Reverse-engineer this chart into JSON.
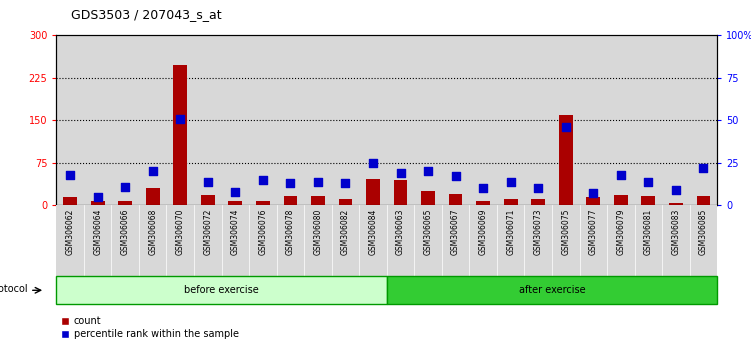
{
  "title": "GDS3503 / 207043_s_at",
  "samples": [
    "GSM306062",
    "GSM306064",
    "GSM306066",
    "GSM306068",
    "GSM306070",
    "GSM306072",
    "GSM306074",
    "GSM306076",
    "GSM306078",
    "GSM306080",
    "GSM306082",
    "GSM306084",
    "GSM306063",
    "GSM306065",
    "GSM306067",
    "GSM306069",
    "GSM306071",
    "GSM306073",
    "GSM306075",
    "GSM306077",
    "GSM306079",
    "GSM306081",
    "GSM306083",
    "GSM306085"
  ],
  "counts": [
    14,
    8,
    7,
    30,
    248,
    18,
    7,
    8,
    16,
    17,
    12,
    47,
    45,
    25,
    20,
    8,
    12,
    12,
    160,
    14,
    18,
    17,
    4,
    17
  ],
  "percentile_ranks": [
    18,
    5,
    11,
    20,
    51,
    14,
    8,
    15,
    13,
    14,
    13,
    25,
    19,
    20,
    17,
    10,
    14,
    10,
    46,
    7,
    18,
    14,
    9,
    22
  ],
  "groups": [
    {
      "label": "before exercise",
      "start": 0,
      "end": 12,
      "color": "#ccffcc",
      "edge_color": "#009900"
    },
    {
      "label": "after exercise",
      "start": 12,
      "end": 24,
      "color": "#33cc33",
      "edge_color": "#009900"
    }
  ],
  "bar_color": "#aa0000",
  "dot_color": "#0000cc",
  "ylim_left": [
    0,
    300
  ],
  "ylim_right": [
    0,
    100
  ],
  "yticks_left": [
    0,
    75,
    150,
    225,
    300
  ],
  "yticks_right": [
    0,
    25,
    50,
    75,
    100
  ],
  "yticklabels_right": [
    "0",
    "25",
    "50",
    "75",
    "100%"
  ],
  "yticklabels_left": [
    "0",
    "75",
    "150",
    "225",
    "300"
  ],
  "protocol_label": "protocol",
  "legend_count": "count",
  "legend_pct": "percentile rank within the sample",
  "plot_bg": "#ffffff",
  "col_bg": "#d8d8d8"
}
